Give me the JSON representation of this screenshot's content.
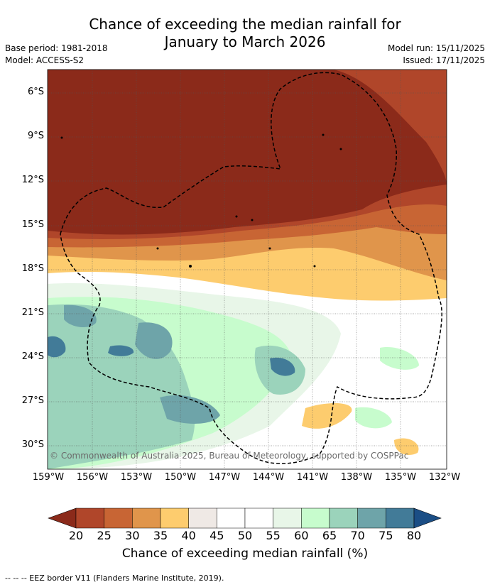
{
  "title_line1": "Chance of exceeding the median rainfall for",
  "title_line2": "January to March 2026",
  "meta_left": [
    "Base period: 1981-2018",
    "Model: ACCESS-S2"
  ],
  "meta_right": [
    "Model run: 15/11/2025",
    "Issued: 17/11/2025"
  ],
  "copyright": "© Commonwealth of Australia 2025, Bureau of Meteorology, supported by COSPPac",
  "map_data": {
    "lat_labels": [
      "6°S",
      "9°S",
      "12°S",
      "15°S",
      "18°S",
      "21°S",
      "24°S",
      "27°S",
      "30°S"
    ],
    "lon_labels": [
      "159°W",
      "156°W",
      "153°W",
      "150°W",
      "147°W",
      "144°W",
      "141°W",
      "138°W",
      "135°W",
      "132°W"
    ],
    "lat_values": [
      -6,
      -9,
      -12,
      -15,
      -18,
      -21,
      -24,
      -27,
      -30
    ],
    "lon_values": [
      -159,
      -156,
      -153,
      -150,
      -147,
      -144,
      -141,
      -138,
      -135,
      -132
    ]
  },
  "colorbar": {
    "ticks": [
      "20",
      "25",
      "30",
      "35",
      "40",
      "45",
      "50",
      "55",
      "60",
      "65",
      "70",
      "75",
      "80"
    ],
    "colors": [
      "#8b2a1a",
      "#b0462a",
      "#c86534",
      "#e0954b",
      "#fdcc6e",
      "#efe9e5",
      "#ffffff",
      "#ffffff",
      "#e8f6e8",
      "#c7fccd",
      "#9bd3bb",
      "#6ea4a9",
      "#427b98",
      "#1b4e85"
    ],
    "label": "Chance of exceeding median rainfall (%)"
  },
  "footer": "--  --  -- EEZ border V11 (Flanders Marine Institute, 2019)."
}
